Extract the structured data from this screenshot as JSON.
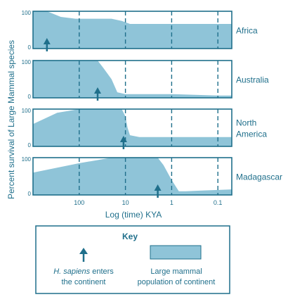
{
  "colors": {
    "area_fill": "#8fc4d8",
    "area_stroke": "#1f6f8b",
    "arrow": "#1f6f8b",
    "text": "#1f6f8b",
    "axis": "#1f6f8b",
    "background": "#ffffff"
  },
  "chart_data": {
    "type": "area",
    "ylabel": "Percent survival of Large Mammal species",
    "xlabel": "Log (time) KYA",
    "x_scale": "log",
    "x_direction": "decreasing",
    "xlim": [
      1000,
      0.05
    ],
    "x_ticks": [
      100,
      10,
      1,
      0.1
    ],
    "x_tick_labels": [
      "100",
      "10",
      "1",
      "0.1"
    ],
    "y_ticks": [
      0,
      100
    ],
    "y_tick_labels": [
      "0",
      "100"
    ],
    "ylim": [
      0,
      100
    ],
    "gridlines": "vertical dashed at x ticks",
    "panels": [
      {
        "name": "Africa",
        "name_lines": [
          "Africa"
        ],
        "x": [
          1000,
          700,
          500,
          250,
          120,
          50,
          20,
          12,
          8,
          3,
          1,
          0.5,
          0.1,
          0.05
        ],
        "y": [
          100,
          100,
          100,
          85,
          80,
          80,
          80,
          74,
          66,
          66,
          66,
          66,
          66,
          66
        ],
        "arrival_kya": 500
      },
      {
        "name": "Australia",
        "name_lines": [
          "Australia"
        ],
        "x": [
          1000,
          100,
          40,
          30,
          20,
          15,
          10,
          5,
          1,
          0.1,
          0.05
        ],
        "y": [
          100,
          100,
          100,
          80,
          50,
          15,
          10,
          10,
          10,
          6,
          6
        ],
        "arrival_kya": 40
      },
      {
        "name": "North America",
        "name_lines": [
          "North",
          "America"
        ],
        "x": [
          1000,
          300,
          100,
          50,
          20,
          12,
          10,
          9,
          8,
          5,
          1,
          0.1,
          0.05
        ],
        "y": [
          60,
          90,
          100,
          100,
          100,
          100,
          80,
          50,
          30,
          25,
          25,
          25,
          25
        ],
        "arrival_kya": 11
      },
      {
        "name": "Madagascar",
        "name_lines": [
          "Madagascar"
        ],
        "x": [
          1000,
          100,
          20,
          10,
          5,
          2,
          1.5,
          1,
          0.7,
          0.5,
          0.2,
          0.05
        ],
        "y": [
          60,
          85,
          100,
          100,
          100,
          100,
          80,
          40,
          10,
          10,
          12,
          15
        ],
        "arrival_kya": 2
      }
    ],
    "legend": {
      "title": "Key",
      "arrow_label_lines": [
        "H. sapiens enters",
        "the continent"
      ],
      "arrow_label_italic": "H. sapiens",
      "area_label_lines": [
        "Large mammal",
        "population of continent"
      ]
    }
  }
}
